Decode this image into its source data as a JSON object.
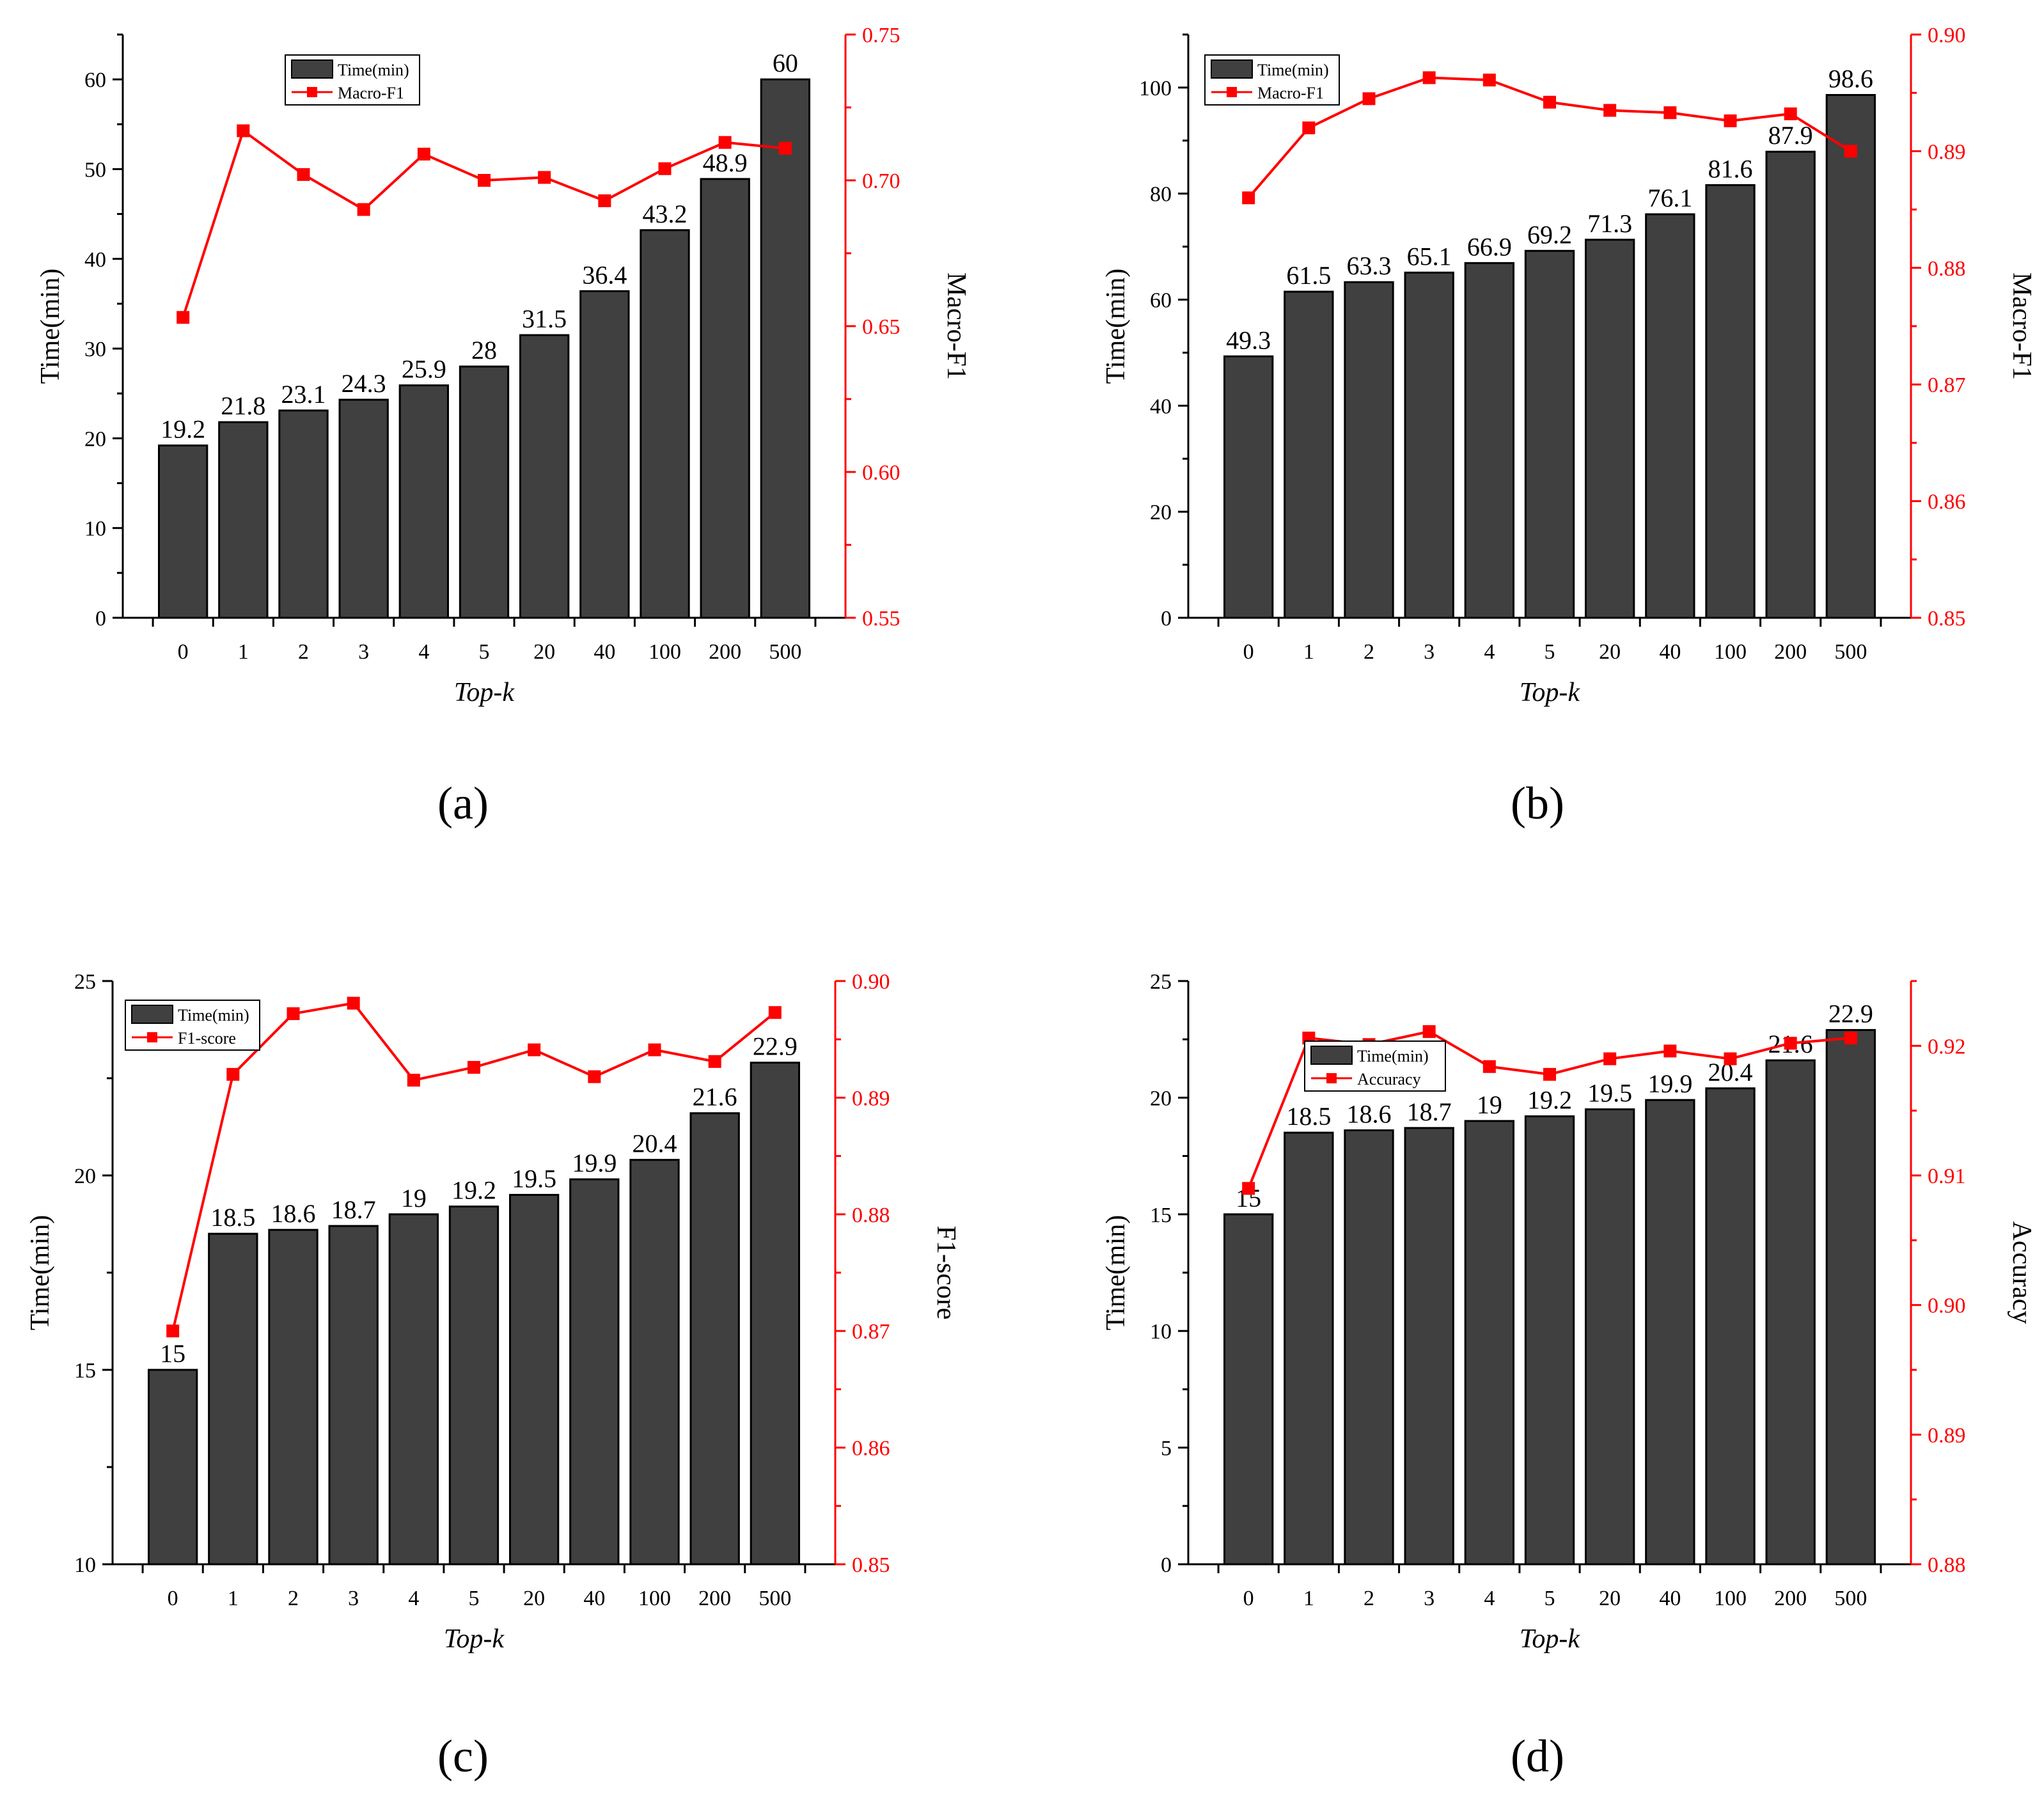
{
  "figure": {
    "colors": {
      "bar": "#404040",
      "bar_stroke": "#000000",
      "line": "#ff0000",
      "axis": "#000000",
      "right_axis": "#ff0000",
      "background": "#ffffff"
    }
  },
  "chart_data": [
    {
      "type": "bar+line",
      "panel_label": "(a)",
      "categories": [
        "0",
        "1",
        "2",
        "3",
        "4",
        "5",
        "20",
        "40",
        "100",
        "200",
        "500"
      ],
      "xlabel": "Top-k",
      "ylabel": "Time(min)",
      "y2label": "Macro-F1",
      "ylim": [
        0,
        65
      ],
      "yticks": [
        0,
        10,
        20,
        30,
        40,
        50,
        60
      ],
      "ytick_labels": [
        "0",
        "10",
        "20",
        "30",
        "40",
        "50",
        "60"
      ],
      "y2lim": [
        0.55,
        0.75
      ],
      "y2ticks": [
        0.55,
        0.6,
        0.65,
        0.7,
        0.75
      ],
      "y2tick_labels": [
        "0.55",
        "0.60",
        "0.65",
        "0.70",
        "0.75"
      ],
      "legend_position": "top-center",
      "series": [
        {
          "name": "Time(min)",
          "kind": "bar",
          "axis": "left",
          "values": [
            19.2,
            21.8,
            23.1,
            24.3,
            25.9,
            28,
            31.5,
            36.4,
            43.2,
            48.9,
            60
          ],
          "labels": [
            "19.2",
            "21.8",
            "23.1",
            "24.3",
            "25.9",
            "28",
            "31.5",
            "36.4",
            "43.2",
            "48.9",
            "60"
          ]
        },
        {
          "name": "Macro-F1",
          "kind": "line",
          "axis": "right",
          "values": [
            0.653,
            0.717,
            0.702,
            0.69,
            0.709,
            0.7,
            0.701,
            0.693,
            0.704,
            0.713,
            0.711
          ]
        }
      ]
    },
    {
      "type": "bar+line",
      "panel_label": "(b)",
      "categories": [
        "0",
        "1",
        "2",
        "3",
        "4",
        "5",
        "20",
        "40",
        "100",
        "200",
        "500"
      ],
      "xlabel": "Top-k",
      "ylabel": "Time(min)",
      "y2label": "Macro-F1",
      "ylim": [
        0,
        110
      ],
      "yticks": [
        0,
        20,
        40,
        60,
        80,
        100
      ],
      "ytick_labels": [
        "0",
        "20",
        "40",
        "60",
        "80",
        "100"
      ],
      "y2lim": [
        0.85,
        0.9
      ],
      "y2ticks": [
        0.85,
        0.86,
        0.87,
        0.88,
        0.89,
        0.9
      ],
      "y2tick_labels": [
        "0.85",
        "0.86",
        "0.87",
        "0.88",
        "0.89",
        "0.90"
      ],
      "legend_position": "top-left",
      "series": [
        {
          "name": "Time(min)",
          "kind": "bar",
          "axis": "left",
          "values": [
            49.3,
            61.5,
            63.3,
            65.1,
            66.9,
            69.2,
            71.3,
            76.1,
            81.6,
            87.9,
            98.6
          ],
          "labels": [
            "49.3",
            "61.5",
            "63.3",
            "65.1",
            "66.9",
            "69.2",
            "71.3",
            "76.1",
            "81.6",
            "87.9",
            "98.6"
          ]
        },
        {
          "name": "Macro-F1",
          "kind": "line",
          "axis": "right",
          "values": [
            0.886,
            0.892,
            0.8945,
            0.8963,
            0.8961,
            0.8942,
            0.8935,
            0.8933,
            0.8926,
            0.8932,
            0.89
          ]
        }
      ]
    },
    {
      "type": "bar+line",
      "panel_label": "(c)",
      "categories": [
        "0",
        "1",
        "2",
        "3",
        "4",
        "5",
        "20",
        "40",
        "100",
        "200",
        "500"
      ],
      "xlabel": "Top-k",
      "ylabel": "Time(min)",
      "y2label": "F1-score",
      "ylim": [
        10,
        25
      ],
      "yticks": [
        10,
        15,
        20,
        25
      ],
      "ytick_labels": [
        "10",
        "15",
        "20",
        "25"
      ],
      "y2lim": [
        0.85,
        0.9
      ],
      "y2ticks": [
        0.85,
        0.86,
        0.87,
        0.88,
        0.89,
        0.9
      ],
      "y2tick_labels": [
        "0.85",
        "0.86",
        "0.87",
        "0.88",
        "0.89",
        "0.90"
      ],
      "legend_position": "top-left",
      "series": [
        {
          "name": "Time(min)",
          "kind": "bar",
          "axis": "left",
          "values": [
            15,
            18.5,
            18.6,
            18.7,
            19,
            19.2,
            19.5,
            19.9,
            20.4,
            21.6,
            22.9
          ],
          "labels": [
            "15",
            "18.5",
            "18.6",
            "18.7",
            "19",
            "19.2",
            "19.5",
            "19.9",
            "20.4",
            "21.6",
            "22.9"
          ]
        },
        {
          "name": "F1-score",
          "kind": "line",
          "axis": "right",
          "values": [
            0.87,
            0.892,
            0.8972,
            0.8981,
            0.8915,
            0.8926,
            0.8941,
            0.8918,
            0.8941,
            0.8931,
            0.8973
          ]
        }
      ]
    },
    {
      "type": "bar+line",
      "panel_label": "(d)",
      "categories": [
        "0",
        "1",
        "2",
        "3",
        "4",
        "5",
        "20",
        "40",
        "100",
        "200",
        "500"
      ],
      "xlabel": "Top-k",
      "ylabel": "Time(min)",
      "y2label": "Accuracy",
      "ylim": [
        0,
        25
      ],
      "yticks": [
        0,
        5,
        10,
        15,
        20,
        25
      ],
      "ytick_labels": [
        "0",
        "5",
        "10",
        "15",
        "20",
        "25"
      ],
      "y2lim": [
        0.88,
        0.925
      ],
      "y2ticks": [
        0.88,
        0.885,
        0.89,
        0.895,
        0.9,
        0.905,
        0.91,
        0.915,
        0.92,
        0.925
      ],
      "y2tick_labels": [
        "0.88",
        "",
        "0.89",
        "",
        "0.90",
        "",
        "0.91",
        "",
        "0.92",
        ""
      ],
      "legend_position": "top-left",
      "series": [
        {
          "name": "Time(min)",
          "kind": "bar",
          "axis": "left",
          "values": [
            15,
            18.5,
            18.6,
            18.7,
            19,
            19.2,
            19.5,
            19.9,
            20.4,
            21.6,
            22.9
          ],
          "labels": [
            "15",
            "18.5",
            "18.6",
            "18.7",
            "19",
            "19.2",
            "19.5",
            "19.9",
            "20.4",
            "21.6",
            "22.9"
          ]
        },
        {
          "name": "Accuracy",
          "kind": "line",
          "axis": "right",
          "values": [
            0.909,
            0.9206,
            0.9201,
            0.9211,
            0.9184,
            0.9178,
            0.919,
            0.9196,
            0.919,
            0.9202,
            0.9206
          ]
        }
      ]
    }
  ]
}
